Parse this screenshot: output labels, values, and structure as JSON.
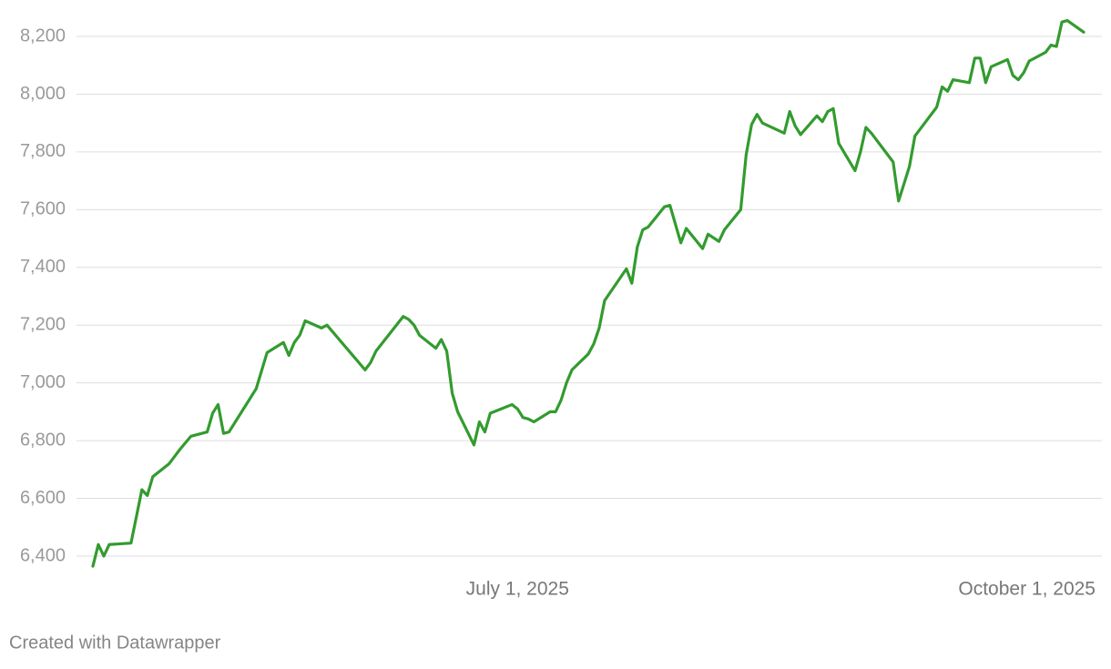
{
  "chart_data": {
    "type": "line",
    "x": [
      "2025-04-14",
      "2025-04-15",
      "2025-04-16",
      "2025-04-17",
      "2025-04-21",
      "2025-04-23",
      "2025-04-24",
      "2025-04-25",
      "2025-04-28",
      "2025-04-29",
      "2025-04-30",
      "2025-05-02",
      "2025-05-05",
      "2025-05-06",
      "2025-05-07",
      "2025-05-08",
      "2025-05-09",
      "2025-05-14",
      "2025-05-16",
      "2025-05-19",
      "2025-05-20",
      "2025-05-21",
      "2025-05-22",
      "2025-05-23",
      "2025-05-26",
      "2025-05-27",
      "2025-06-03",
      "2025-06-04",
      "2025-06-05",
      "2025-06-10",
      "2025-06-11",
      "2025-06-12",
      "2025-06-13",
      "2025-06-16",
      "2025-06-17",
      "2025-06-18",
      "2025-06-19",
      "2025-06-20",
      "2025-06-23",
      "2025-06-24",
      "2025-06-25",
      "2025-06-26",
      "2025-06-30",
      "2025-07-01",
      "2025-07-02",
      "2025-07-03",
      "2025-07-04",
      "2025-07-07",
      "2025-07-08",
      "2025-07-09",
      "2025-07-10",
      "2025-07-11",
      "2025-07-14",
      "2025-07-15",
      "2025-07-16",
      "2025-07-17",
      "2025-07-21",
      "2025-07-22",
      "2025-07-23",
      "2025-07-24",
      "2025-07-25",
      "2025-07-28",
      "2025-07-29",
      "2025-07-31",
      "2025-08-01",
      "2025-08-04",
      "2025-08-05",
      "2025-08-07",
      "2025-08-08",
      "2025-08-11",
      "2025-08-12",
      "2025-08-13",
      "2025-08-14",
      "2025-08-15",
      "2025-08-19",
      "2025-08-20",
      "2025-08-21",
      "2025-08-22",
      "2025-08-25",
      "2025-08-26",
      "2025-08-27",
      "2025-08-28",
      "2025-08-29",
      "2025-09-01",
      "2025-09-02",
      "2025-09-03",
      "2025-09-04",
      "2025-09-08",
      "2025-09-09",
      "2025-09-10",
      "2025-09-11",
      "2025-09-12",
      "2025-09-16",
      "2025-09-17",
      "2025-09-18",
      "2025-09-19",
      "2025-09-22",
      "2025-09-23",
      "2025-09-24",
      "2025-09-25",
      "2025-09-26",
      "2025-09-29",
      "2025-09-30",
      "2025-10-01",
      "2025-10-02",
      "2025-10-03",
      "2025-10-06",
      "2025-10-07",
      "2025-10-08",
      "2025-10-09",
      "2025-10-10",
      "2025-10-13"
    ],
    "values": [
      6365,
      6440,
      6400,
      6440,
      6445,
      6630,
      6610,
      6675,
      6720,
      6745,
      6770,
      6815,
      6830,
      6895,
      6925,
      6825,
      6830,
      6980,
      7105,
      7140,
      7095,
      7140,
      7165,
      7215,
      7190,
      7200,
      7045,
      7070,
      7110,
      7230,
      7220,
      7200,
      7165,
      7120,
      7150,
      7110,
      6965,
      6900,
      6785,
      6865,
      6830,
      6895,
      6925,
      6910,
      6880,
      6875,
      6865,
      6900,
      6900,
      6940,
      7000,
      7045,
      7100,
      7135,
      7190,
      7285,
      7395,
      7345,
      7470,
      7530,
      7540,
      7610,
      7615,
      7485,
      7535,
      7465,
      7515,
      7490,
      7530,
      7600,
      7790,
      7895,
      7930,
      7900,
      7865,
      7940,
      7890,
      7860,
      7925,
      7905,
      7940,
      7950,
      7830,
      7735,
      7800,
      7885,
      7865,
      7765,
      7630,
      7690,
      7750,
      7855,
      7955,
      8025,
      8010,
      8050,
      8040,
      8125,
      8125,
      8040,
      8095,
      8120,
      8065,
      8050,
      8075,
      8115,
      8145,
      8170,
      8165,
      8250,
      8255,
      8215
    ],
    "color": "#339b2f",
    "xlim": [
      "2025-04-14",
      "2025-10-13"
    ],
    "xticks": [
      {
        "value": "2025-07-01",
        "label": "July 1, 2025"
      },
      {
        "value": "2025-10-01",
        "label": "October 1, 2025"
      }
    ],
    "ylim": [
      6340,
      8260
    ],
    "yticks": [
      {
        "value": 6400,
        "label": "6,400"
      },
      {
        "value": 6600,
        "label": "6,600"
      },
      {
        "value": 6800,
        "label": "6,800"
      },
      {
        "value": 7000,
        "label": "7,000"
      },
      {
        "value": 7200,
        "label": "7,200"
      },
      {
        "value": 7400,
        "label": "7,400"
      },
      {
        "value": 7600,
        "label": "7,600"
      },
      {
        "value": 7800,
        "label": "7,800"
      },
      {
        "value": 8000,
        "label": "8,000"
      },
      {
        "value": 8200,
        "label": "8,200"
      }
    ],
    "grid": true,
    "source": "Created with Datawrapper"
  }
}
